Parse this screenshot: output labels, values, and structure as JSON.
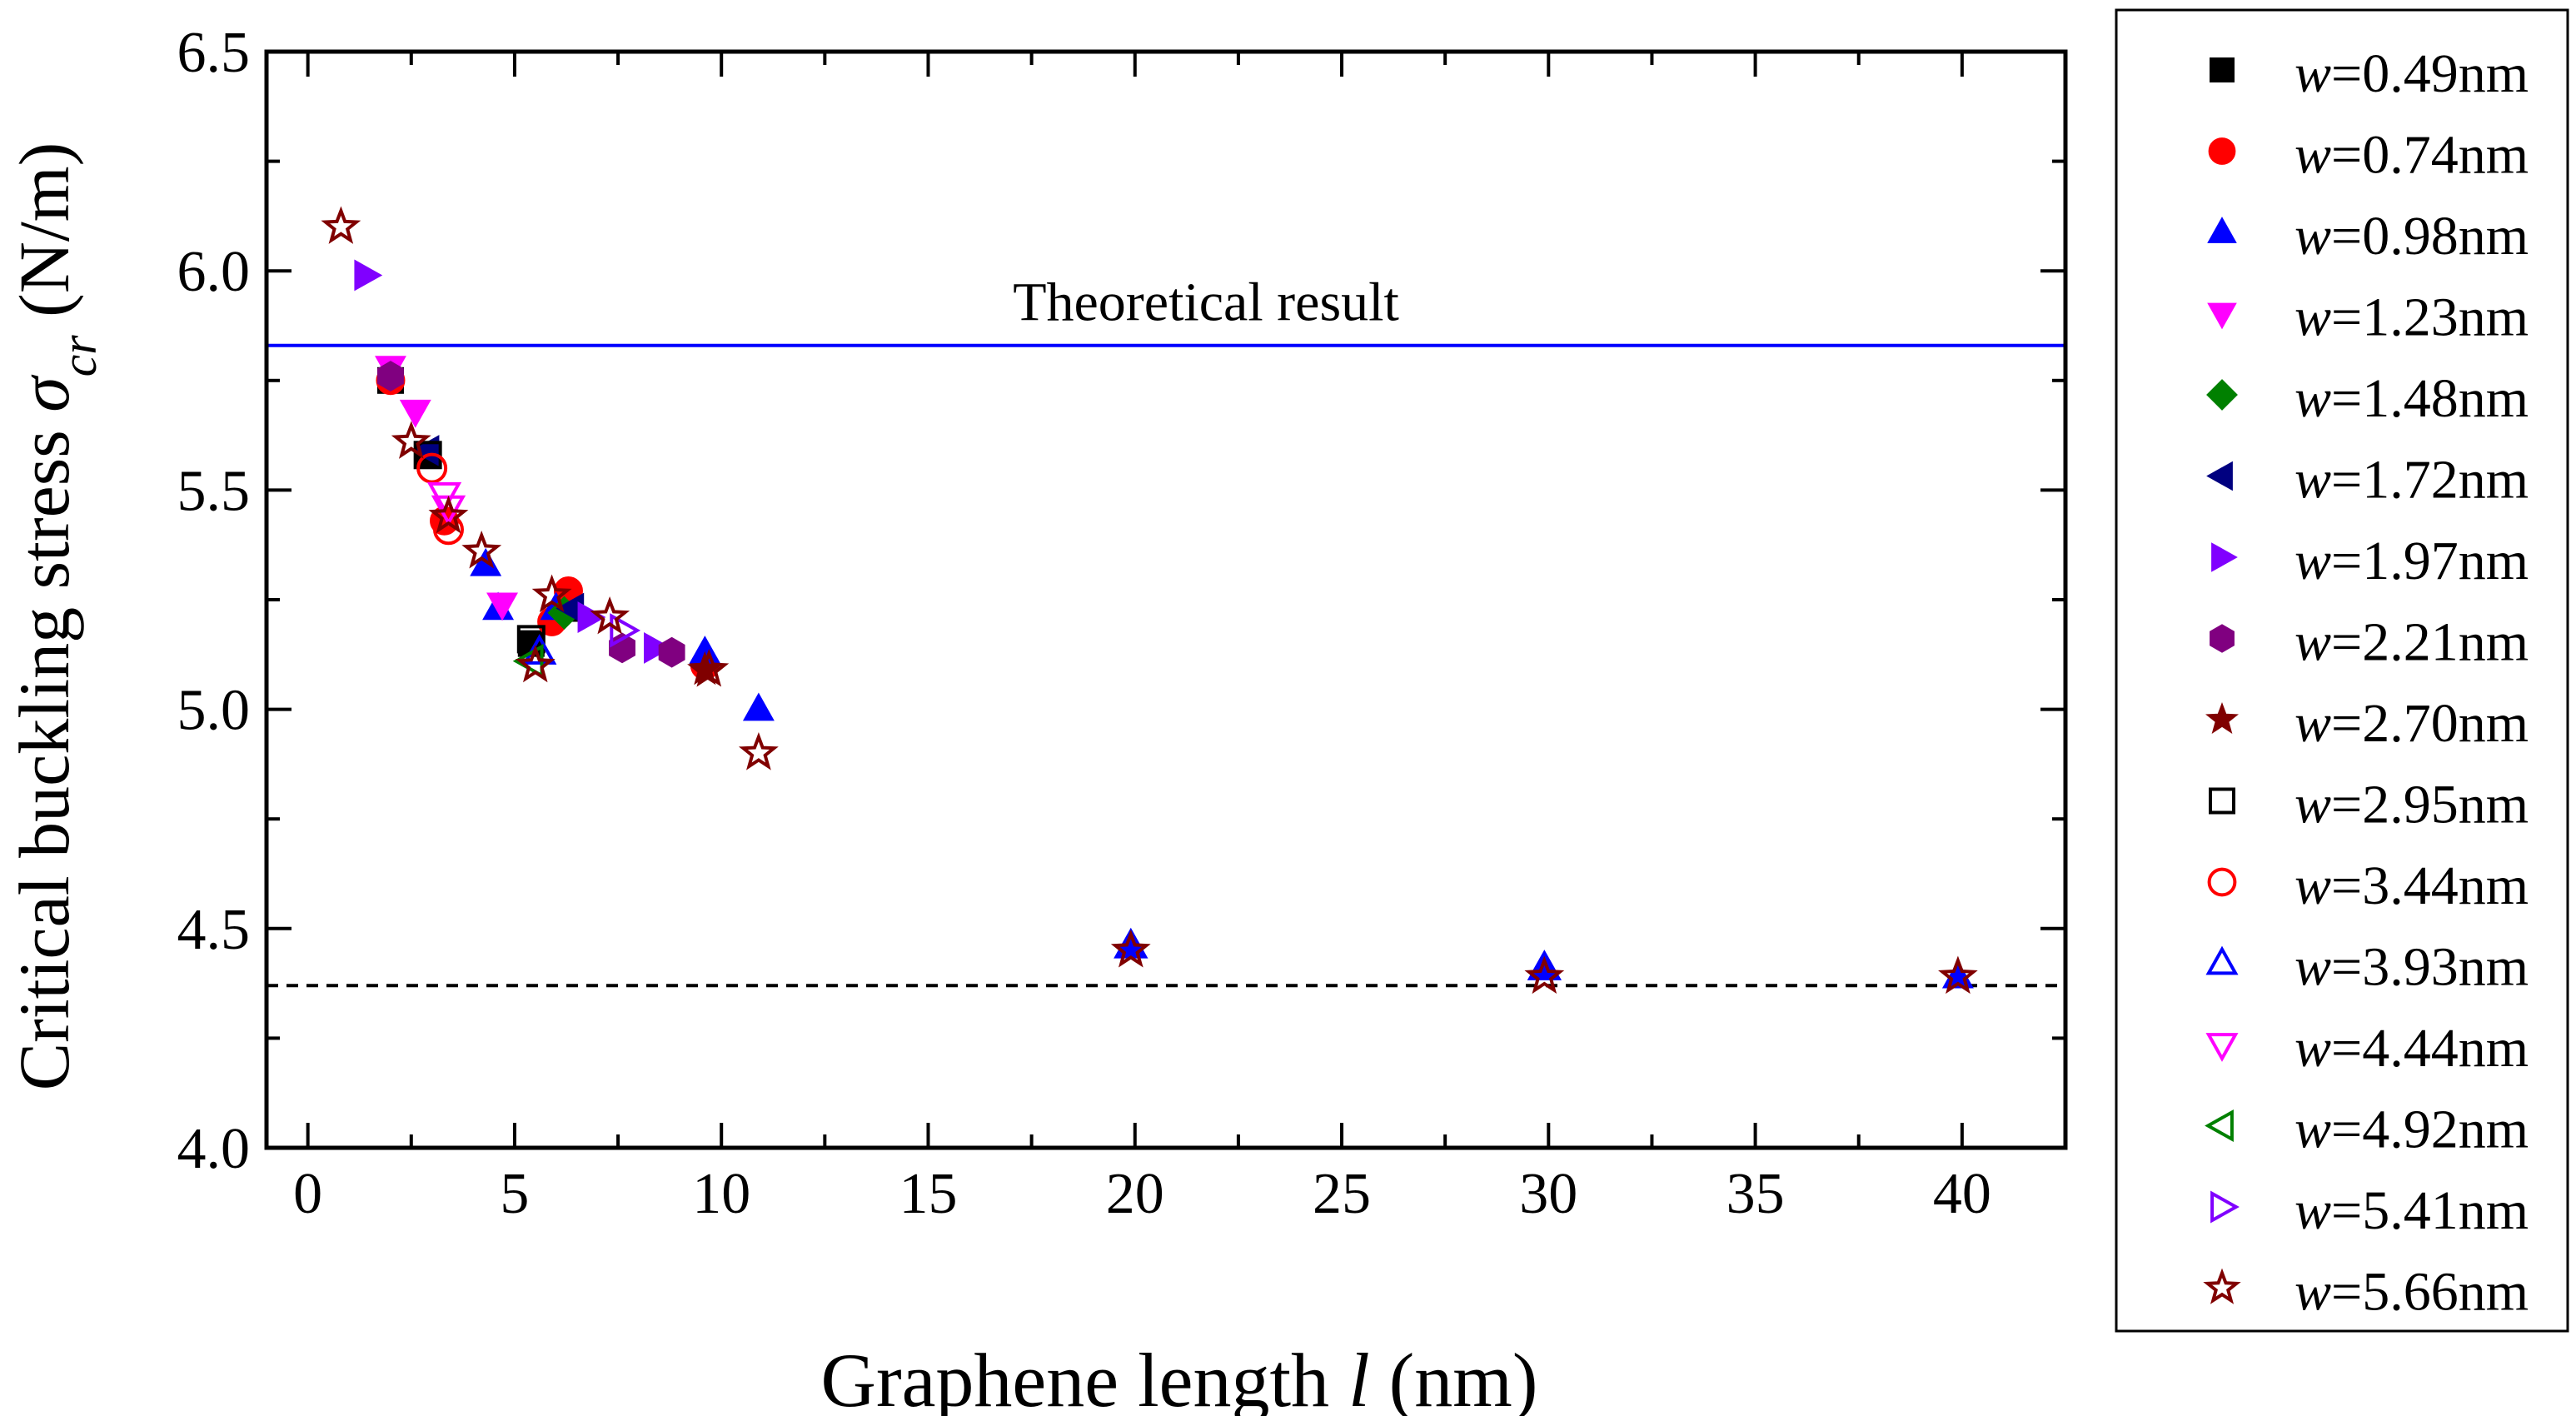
{
  "chart_data": {
    "type": "scatter",
    "xlabel": {
      "prefix": "Graphene length ",
      "var": "l",
      "suffix": " (nm)"
    },
    "ylabel": {
      "prefix": "Critical buckling stress ",
      "var": "σ",
      "sub": "cr",
      "suffix": " (N/m)"
    },
    "xlim": [
      -1,
      42.5
    ],
    "ylim": [
      4.0,
      6.5
    ],
    "xticks": [
      "0",
      "5",
      "10",
      "15",
      "20",
      "25",
      "30",
      "35",
      "40"
    ],
    "yticks": [
      "4.0",
      "4.5",
      "5.0",
      "5.5",
      "6.0",
      "6.5"
    ],
    "reference_lines": [
      {
        "name": "theoretical",
        "y": 5.83,
        "color": "#0000ff",
        "style": "solid",
        "label": "Theoretical result"
      },
      {
        "name": "asymptote",
        "y": 4.37,
        "color": "#000000",
        "style": "dashed",
        "label": ""
      }
    ],
    "legend_position": "right-outside",
    "series": [
      {
        "name": "w=0.49nm",
        "wvar": "w",
        "wval": "=0.49nm",
        "marker": "square",
        "filled": true,
        "color": "#000000",
        "points": [
          [
            2.0,
            5.75
          ],
          [
            2.9,
            5.58
          ],
          [
            5.4,
            5.15
          ],
          [
            6.3,
            5.23
          ]
        ]
      },
      {
        "name": "w=0.74nm",
        "wvar": "w",
        "wval": "=0.74nm",
        "marker": "circle",
        "filled": true,
        "color": "#ff0000",
        "points": [
          [
            2.0,
            5.75
          ],
          [
            3.3,
            5.43
          ],
          [
            5.9,
            5.2
          ],
          [
            6.3,
            5.27
          ],
          [
            9.6,
            5.1
          ]
        ]
      },
      {
        "name": "w=0.98nm",
        "wvar": "w",
        "wval": "=0.98nm",
        "marker": "triangle-up",
        "filled": true,
        "color": "#0000ff",
        "points": [
          [
            4.3,
            5.33
          ],
          [
            4.6,
            5.23
          ],
          [
            6.0,
            5.23
          ],
          [
            9.6,
            5.13
          ],
          [
            10.9,
            5.0
          ],
          [
            19.9,
            4.46
          ],
          [
            29.9,
            4.41
          ],
          [
            39.9,
            4.39
          ]
        ]
      },
      {
        "name": "w=1.23nm",
        "wvar": "w",
        "wval": "=1.23nm",
        "marker": "triangle-down",
        "filled": true,
        "color": "#ff00ff",
        "points": [
          [
            2.0,
            5.78
          ],
          [
            2.6,
            5.68
          ],
          [
            4.7,
            5.24
          ]
        ]
      },
      {
        "name": "w=1.48nm",
        "wvar": "w",
        "wval": "=1.48nm",
        "marker": "diamond",
        "filled": true,
        "color": "#008000",
        "points": [
          [
            6.2,
            5.22
          ]
        ]
      },
      {
        "name": "w=1.72nm",
        "wvar": "w",
        "wval": "=1.72nm",
        "marker": "triangle-left",
        "filled": true,
        "color": "#000080",
        "points": [
          [
            2.9,
            5.59
          ],
          [
            6.4,
            5.23
          ]
        ]
      },
      {
        "name": "w=1.97nm",
        "wvar": "w",
        "wval": "=1.97nm",
        "marker": "triangle-right",
        "filled": true,
        "color": "#8000ff",
        "points": [
          [
            1.4,
            5.99
          ],
          [
            6.8,
            5.21
          ],
          [
            8.4,
            5.14
          ]
        ]
      },
      {
        "name": "w=2.21nm",
        "wvar": "w",
        "wval": "=2.21nm",
        "marker": "hexagon",
        "filled": true,
        "color": "#800080",
        "points": [
          [
            2.0,
            5.76
          ],
          [
            7.6,
            5.14
          ],
          [
            8.8,
            5.13
          ]
        ]
      },
      {
        "name": "w=2.70nm",
        "wvar": "w",
        "wval": "=2.70nm",
        "marker": "star",
        "filled": true,
        "color": "#800000",
        "points": [
          [
            9.6,
            5.09
          ]
        ]
      },
      {
        "name": "w=2.95nm",
        "wvar": "w",
        "wval": "=2.95nm",
        "marker": "square",
        "filled": false,
        "color": "#000000",
        "points": [
          [
            2.9,
            5.58
          ],
          [
            5.4,
            5.16
          ]
        ]
      },
      {
        "name": "w=3.44nm",
        "wvar": "w",
        "wval": "=3.44nm",
        "marker": "circle",
        "filled": false,
        "color": "#ff0000",
        "points": [
          [
            3.0,
            5.55
          ],
          [
            3.4,
            5.41
          ]
        ]
      },
      {
        "name": "w=3.93nm",
        "wvar": "w",
        "wval": "=3.93nm",
        "marker": "triangle-up",
        "filled": false,
        "color": "#0000ff",
        "points": [
          [
            5.6,
            5.13
          ],
          [
            19.9,
            4.46
          ],
          [
            29.9,
            4.41
          ]
        ]
      },
      {
        "name": "w=4.44nm",
        "wvar": "w",
        "wval": "=4.44nm",
        "marker": "triangle-down",
        "filled": false,
        "color": "#ff00ff",
        "points": [
          [
            3.3,
            5.49
          ],
          [
            3.4,
            5.46
          ]
        ]
      },
      {
        "name": "w=4.92nm",
        "wvar": "w",
        "wval": "=4.92nm",
        "marker": "triangle-left",
        "filled": false,
        "color": "#008000",
        "points": [
          [
            5.4,
            5.11
          ]
        ]
      },
      {
        "name": "w=5.41nm",
        "wvar": "w",
        "wval": "=5.41nm",
        "marker": "triangle-right",
        "filled": false,
        "color": "#8000ff",
        "points": [
          [
            7.6,
            5.18
          ]
        ]
      },
      {
        "name": "w=5.66nm",
        "wvar": "w",
        "wval": "=5.66nm",
        "marker": "star",
        "filled": false,
        "color": "#800000",
        "points": [
          [
            0.8,
            6.1
          ],
          [
            2.5,
            5.61
          ],
          [
            3.4,
            5.44
          ],
          [
            4.2,
            5.36
          ],
          [
            5.5,
            5.1
          ],
          [
            5.9,
            5.26
          ],
          [
            7.3,
            5.21
          ],
          [
            9.7,
            5.09
          ],
          [
            10.9,
            4.9
          ],
          [
            19.9,
            4.45
          ],
          [
            29.9,
            4.39
          ],
          [
            39.9,
            4.39
          ]
        ]
      }
    ]
  }
}
